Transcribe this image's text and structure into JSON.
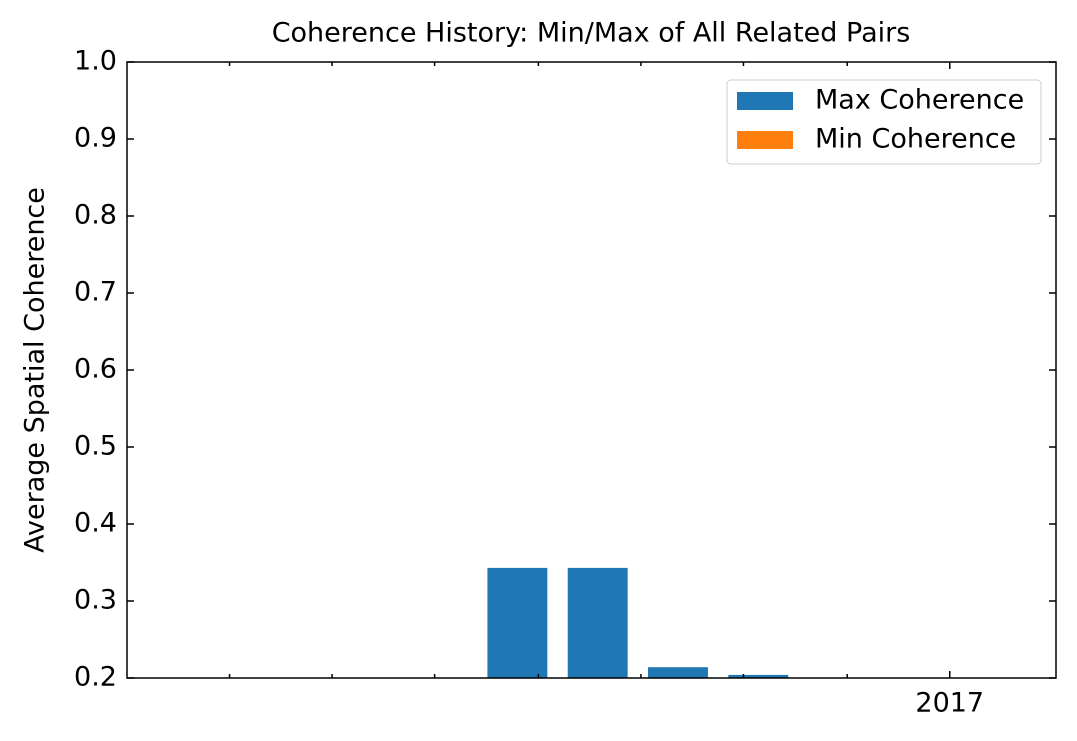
{
  "chart_data": {
    "type": "bar",
    "title": "Coherence History: Min/Max of All Related Pairs",
    "y_label": "Average Spatial Coherence",
    "x": [
      2016.65,
      2016.715,
      2016.78,
      2016.845
    ],
    "bar_width": 0.0485,
    "series": [
      {
        "name": "Max Coherence",
        "color": "#1f77b4",
        "values": [
          0.343,
          0.343,
          0.214,
          0.204
        ]
      },
      {
        "name": "Min Coherence",
        "color": "#ff7f0e",
        "values": [
          null,
          null,
          null,
          null
        ]
      }
    ],
    "xlim": [
      2016.334,
      2017.086
    ],
    "xticks": [
      2017
    ],
    "xminor_ticks": [
      2016.417,
      2016.5,
      2016.583,
      2016.667,
      2016.75,
      2016.833,
      2016.917
    ],
    "ylim": [
      0.2,
      1.0
    ],
    "yticks": [
      0.2,
      0.3,
      0.4,
      0.5,
      0.6,
      0.7,
      0.8,
      0.9,
      {
        "value": 1.0,
        "label": "1.0"
      }
    ],
    "legend": "upper right"
  }
}
